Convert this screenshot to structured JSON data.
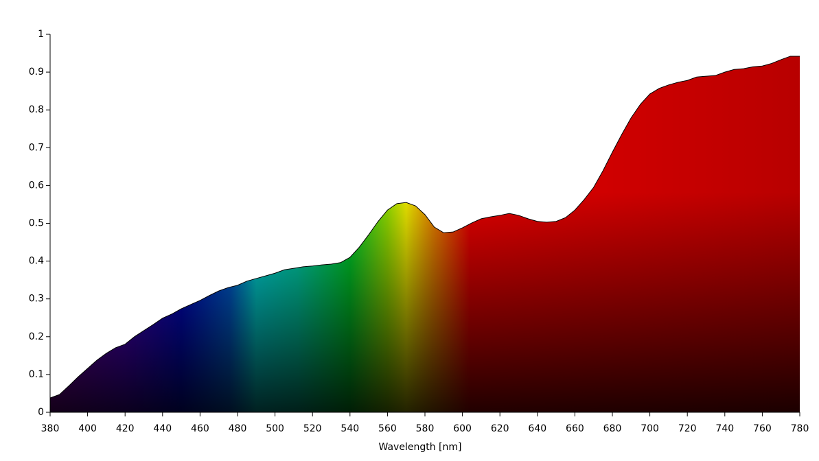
{
  "chart_data": {
    "type": "area",
    "x_label": "Wavelength [nm]",
    "x": [
      380,
      385,
      390,
      395,
      400,
      405,
      410,
      415,
      420,
      425,
      430,
      435,
      440,
      445,
      450,
      455,
      460,
      465,
      470,
      475,
      480,
      485,
      490,
      495,
      500,
      505,
      510,
      515,
      520,
      525,
      530,
      535,
      540,
      545,
      550,
      555,
      560,
      565,
      570,
      575,
      580,
      585,
      590,
      595,
      600,
      605,
      610,
      615,
      620,
      625,
      630,
      635,
      640,
      645,
      650,
      655,
      660,
      665,
      670,
      675,
      680,
      685,
      690,
      695,
      700,
      705,
      710,
      715,
      720,
      725,
      730,
      735,
      740,
      745,
      750,
      755,
      760,
      765,
      770,
      775,
      780
    ],
    "values": [
      0.038,
      0.047,
      0.07,
      0.094,
      0.116,
      0.138,
      0.156,
      0.171,
      0.18,
      0.2,
      0.216,
      0.232,
      0.249,
      0.26,
      0.274,
      0.285,
      0.296,
      0.309,
      0.321,
      0.33,
      0.336,
      0.347,
      0.354,
      0.361,
      0.368,
      0.377,
      0.381,
      0.385,
      0.387,
      0.39,
      0.392,
      0.396,
      0.41,
      0.437,
      0.47,
      0.505,
      0.535,
      0.552,
      0.555,
      0.546,
      0.523,
      0.49,
      0.475,
      0.477,
      0.488,
      0.501,
      0.512,
      0.517,
      0.521,
      0.526,
      0.521,
      0.512,
      0.505,
      0.503,
      0.505,
      0.515,
      0.535,
      0.563,
      0.595,
      0.639,
      0.688,
      0.735,
      0.779,
      0.815,
      0.842,
      0.857,
      0.866,
      0.873,
      0.878,
      0.887,
      0.889,
      0.891,
      0.9,
      0.907,
      0.909,
      0.914,
      0.916,
      0.923,
      0.933,
      0.942,
      0.942
    ],
    "xlim": [
      380,
      780
    ],
    "xticks": [
      380,
      400,
      420,
      440,
      460,
      480,
      500,
      520,
      540,
      560,
      580,
      600,
      620,
      640,
      660,
      680,
      700,
      720,
      740,
      760,
      780
    ],
    "ylim": [
      0,
      1
    ],
    "yticks": [
      0,
      0.1,
      0.2,
      0.3,
      0.4,
      0.5,
      0.6,
      0.7,
      0.8,
      0.9,
      1
    ]
  }
}
